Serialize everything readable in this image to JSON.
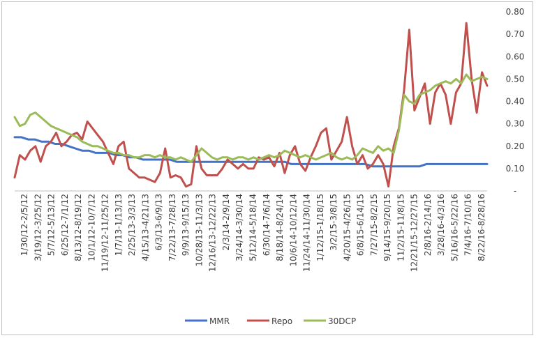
{
  "chart_data": {
    "type": "line",
    "title": "",
    "xlabel": "",
    "ylabel": "",
    "ylim": [
      0,
      0.8
    ],
    "y_ticks": [
      "-",
      "0.10",
      "0.20",
      "0.30",
      "0.40",
      "0.50",
      "0.60",
      "0.70",
      "0.80"
    ],
    "y_axis_position": "right",
    "grid": false,
    "legend_position": "bottom",
    "x_tick_labels": [
      "1/30/12-2/5/12",
      "3/19/12-3/25/12",
      "5/7/12-5/13/12",
      "6/25/12-7/1/12",
      "8/13/12-8/19/12",
      "10/1/12-10/7/12",
      "11/19/12-11/25/12",
      "1/7/13-1/13/13",
      "2/25/13-3/3/13",
      "4/15/13-4/21/13",
      "6/3/13-6/9/13",
      "7/22/13-7/28/13",
      "9/9/13-9/15/13",
      "10/28/13-11/3/13",
      "12/16/13-12/22/13",
      "2/3/14-2/9/14",
      "3/24/14-3/30/14",
      "5/12/14-5/18/14",
      "6/30/14-7/6/14",
      "8/18/14-8/24/14",
      "10/6/14-10/12/14",
      "11/24/14-11/30/14",
      "1/12/15-1/18/15",
      "3/2/15-3/8/15",
      "4/20/15-4/26/15",
      "6/8/15-6/14/15",
      "7/27/15-8/2/15",
      "9/14/15-9/20/15",
      "11/2/15-11/8/15",
      "12/21/15-12/27/15",
      "2/8/16-2/14/16",
      "3/28/16-4/3/16",
      "5/16/16-5/22/16",
      "7/4/16-7/10/16",
      "8/22/16-8/28/16"
    ],
    "series": [
      {
        "name": "MMR",
        "color": "#4472c4",
        "values": [
          0.24,
          0.24,
          0.23,
          0.23,
          0.22,
          0.22,
          0.21,
          0.21,
          0.2,
          0.19,
          0.18,
          0.18,
          0.17,
          0.17,
          0.17,
          0.16,
          0.16,
          0.15,
          0.15,
          0.14,
          0.14,
          0.14,
          0.14,
          0.14,
          0.13,
          0.13,
          0.13,
          0.13,
          0.13,
          0.13,
          0.13,
          0.13,
          0.13,
          0.13,
          0.13,
          0.13,
          0.13,
          0.13,
          0.13,
          0.13,
          0.13,
          0.12,
          0.12,
          0.12,
          0.12,
          0.12,
          0.12,
          0.12,
          0.12,
          0.12,
          0.12,
          0.12,
          0.12,
          0.11,
          0.11,
          0.11,
          0.11,
          0.11,
          0.11,
          0.11,
          0.11,
          0.12,
          0.12,
          0.12,
          0.12,
          0.12,
          0.12,
          0.12,
          0.12,
          0.12,
          0.12
        ]
      },
      {
        "name": "Repo",
        "color": "#c0504d",
        "values": [
          0.06,
          0.16,
          0.14,
          0.18,
          0.2,
          0.13,
          0.2,
          0.22,
          0.26,
          0.2,
          0.22,
          0.25,
          0.26,
          0.23,
          0.31,
          0.28,
          0.25,
          0.22,
          0.17,
          0.12,
          0.2,
          0.22,
          0.1,
          0.08,
          0.06,
          0.06,
          0.05,
          0.04,
          0.08,
          0.19,
          0.06,
          0.07,
          0.06,
          0.02,
          0.03,
          0.2,
          0.1,
          0.07,
          0.07,
          0.07,
          0.1,
          0.14,
          0.12,
          0.1,
          0.12,
          0.1,
          0.1,
          0.15,
          0.14,
          0.15,
          0.11,
          0.17,
          0.08,
          0.16,
          0.2,
          0.12,
          0.09,
          0.15,
          0.2,
          0.26,
          0.28,
          0.14,
          0.18,
          0.22,
          0.33,
          0.2,
          0.12,
          0.16,
          0.1,
          0.12,
          0.16,
          0.12,
          0.02,
          0.2,
          0.28,
          0.45,
          0.72,
          0.36,
          0.42,
          0.48,
          0.3,
          0.44,
          0.48,
          0.43,
          0.3,
          0.44,
          0.48,
          0.75,
          0.5,
          0.35,
          0.53,
          0.47
        ]
      },
      {
        "name": "30DCP",
        "color": "#9bbb59",
        "values": [
          0.33,
          0.29,
          0.3,
          0.34,
          0.35,
          0.33,
          0.31,
          0.29,
          0.28,
          0.27,
          0.26,
          0.25,
          0.24,
          0.22,
          0.21,
          0.2,
          0.2,
          0.19,
          0.18,
          0.17,
          0.17,
          0.16,
          0.16,
          0.15,
          0.15,
          0.16,
          0.16,
          0.15,
          0.16,
          0.15,
          0.15,
          0.14,
          0.15,
          0.14,
          0.13,
          0.16,
          0.19,
          0.17,
          0.15,
          0.14,
          0.15,
          0.15,
          0.14,
          0.15,
          0.15,
          0.14,
          0.15,
          0.14,
          0.15,
          0.16,
          0.15,
          0.16,
          0.18,
          0.17,
          0.16,
          0.15,
          0.16,
          0.15,
          0.14,
          0.15,
          0.16,
          0.17,
          0.15,
          0.14,
          0.15,
          0.14,
          0.16,
          0.19,
          0.18,
          0.17,
          0.2,
          0.18,
          0.19,
          0.17,
          0.27,
          0.43,
          0.4,
          0.39,
          0.43,
          0.44,
          0.45,
          0.47,
          0.48,
          0.49,
          0.48,
          0.5,
          0.48,
          0.52,
          0.49,
          0.5,
          0.51,
          0.5
        ]
      }
    ]
  }
}
